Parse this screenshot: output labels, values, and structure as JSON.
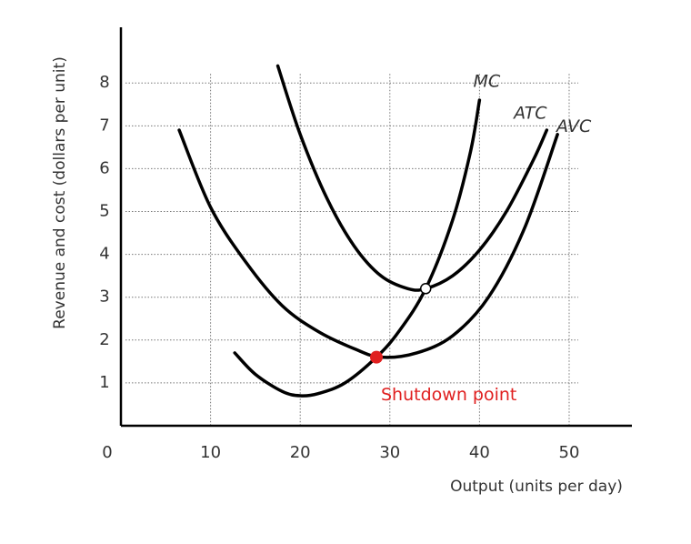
{
  "chart_data": {
    "type": "line",
    "x_label": "Output (units per day)",
    "y_label": "Revenue and cost (dollars per unit)",
    "xlim": [
      0,
      57
    ],
    "ylim": [
      0,
      9.3
    ],
    "xticks": [
      0,
      10,
      20,
      30,
      40,
      50
    ],
    "yticks": [
      1,
      2,
      3,
      4,
      5,
      6,
      7,
      8
    ],
    "grid": true,
    "series": [
      {
        "name": "MC",
        "color": "#000000",
        "x": [
          12.7,
          15,
          18,
          20,
          22,
          25,
          28.5,
          31,
          34,
          37,
          39,
          40
        ],
        "values": [
          1.7,
          1.2,
          0.8,
          0.7,
          0.75,
          1.0,
          1.6,
          2.2,
          3.2,
          4.8,
          6.4,
          7.6
        ]
      },
      {
        "name": "ATC",
        "color": "#000000",
        "x": [
          17.5,
          20,
          23,
          26,
          29,
          32,
          34,
          37,
          40,
          43,
          46,
          47.5
        ],
        "values": [
          8.4,
          6.8,
          5.3,
          4.2,
          3.5,
          3.2,
          3.2,
          3.5,
          4.1,
          5.0,
          6.2,
          6.9
        ]
      },
      {
        "name": "AVC",
        "color": "#000000",
        "x": [
          6.5,
          10,
          14,
          18,
          22,
          26,
          29,
          33,
          37,
          41,
          45,
          48.7
        ],
        "values": [
          6.9,
          5.1,
          3.8,
          2.8,
          2.2,
          1.8,
          1.6,
          1.7,
          2.1,
          3.0,
          4.6,
          6.8
        ]
      }
    ],
    "points": [
      {
        "label": "Shutdown point",
        "x": 28.5,
        "y": 1.6,
        "color": "#e02020",
        "filled": true
      },
      {
        "x": 34,
        "y": 3.2,
        "color": "#000000",
        "filled": false
      }
    ]
  }
}
